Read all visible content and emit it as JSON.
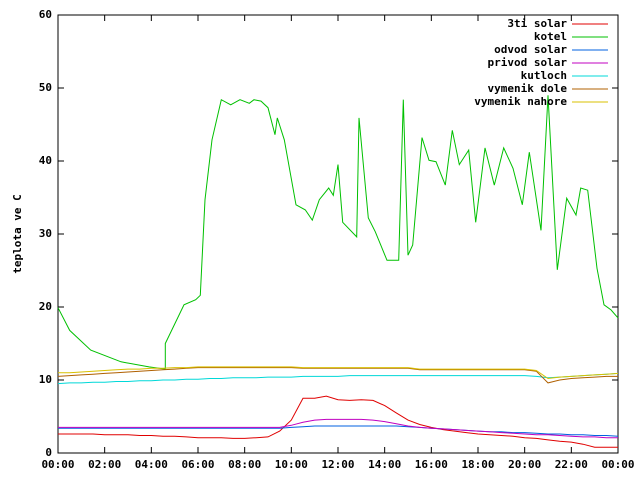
{
  "chart_data": {
    "type": "line",
    "y_label": "teplota ve C",
    "xlim": [
      0,
      24
    ],
    "ylim": [
      0,
      60
    ],
    "xticks": [
      {
        "value": 0,
        "label": "00:00"
      },
      {
        "value": 2,
        "label": "02:00"
      },
      {
        "value": 4,
        "label": "04:00"
      },
      {
        "value": 6,
        "label": "06:00"
      },
      {
        "value": 8,
        "label": "08:00"
      },
      {
        "value": 10,
        "label": "10:00"
      },
      {
        "value": 12,
        "label": "12:00"
      },
      {
        "value": 14,
        "label": "14:00"
      },
      {
        "value": 16,
        "label": "16:00"
      },
      {
        "value": 18,
        "label": "18:00"
      },
      {
        "value": 20,
        "label": "20:00"
      },
      {
        "value": 22,
        "label": "22:00"
      },
      {
        "value": 24,
        "label": "00:00"
      }
    ],
    "yticks": [
      0,
      10,
      20,
      30,
      40,
      50,
      60
    ],
    "legend": "top-right",
    "grid": false,
    "x": [
      0,
      0.5,
      1,
      1.5,
      2,
      2.5,
      3,
      3.5,
      4,
      4.5,
      5,
      5.5,
      6,
      6.5,
      7,
      7.5,
      8,
      8.5,
      9,
      9.5,
      10,
      10.5,
      11,
      11.5,
      12,
      12.5,
      13,
      13.5,
      14,
      14.5,
      15,
      15.5,
      16,
      16.5,
      17,
      17.5,
      18,
      18.5,
      19,
      19.5,
      20,
      20.5,
      21,
      21.5,
      22,
      22.5,
      23,
      23.5,
      24
    ],
    "series": [
      {
        "name": "3ti solar",
        "color": "#e00000",
        "values": [
          2.6,
          2.6,
          2.6,
          2.6,
          2.5,
          2.5,
          2.5,
          2.4,
          2.4,
          2.3,
          2.3,
          2.2,
          2.1,
          2.1,
          2.1,
          2.0,
          2.0,
          2.1,
          2.2,
          3,
          4.5,
          7.5,
          7.5,
          7.8,
          7.3,
          7.2,
          7.3,
          7.2,
          6.5,
          5.5,
          4.5,
          3.9,
          3.5,
          3.2,
          3,
          2.8,
          2.6,
          2.5,
          2.4,
          2.3,
          2.1,
          2,
          1.8,
          1.6,
          1.5,
          1.2,
          0.8,
          0.8,
          0.8
        ]
      },
      {
        "name": "kotel",
        "color": "#00c000",
        "x": [
          0,
          0.5,
          1.4,
          2.7,
          3.9,
          4.6,
          4.6,
          5.4,
          5.9,
          6.1,
          6.3,
          6.6,
          7.0,
          7.4,
          7.8,
          8.2,
          8.4,
          8.7,
          9.0,
          9.3,
          9.4,
          9.7,
          10.2,
          10.6,
          10.9,
          11.2,
          11.6,
          11.8,
          12,
          12.2,
          12.8,
          12.9,
          13.3,
          13.6,
          14.1,
          14.6,
          14.8,
          15,
          15.2,
          15.6,
          15.9,
          16.2,
          16.6,
          16.9,
          17.2,
          17.6,
          17.9,
          18.3,
          18.7,
          19.1,
          19.5,
          19.9,
          20.2,
          20.7,
          21,
          21.4,
          21.8,
          22.2,
          22.4,
          22.7,
          23.1,
          23.4,
          23.7,
          24
        ],
        "values": [
          19.9,
          16.8,
          14.1,
          12.5,
          11.8,
          11.5,
          15,
          20.3,
          21,
          21.6,
          34.7,
          42.9,
          48.4,
          47.7,
          48.4,
          47.9,
          48.4,
          48.2,
          47.3,
          43.6,
          45.9,
          42.9,
          34,
          33.3,
          31.9,
          34.7,
          36.3,
          35.3,
          39.5,
          31.6,
          29.6,
          45.9,
          32.2,
          30.3,
          26.4,
          26.4,
          48.4,
          27.1,
          28.5,
          43.2,
          40.1,
          39.9,
          36.7,
          44.2,
          39.5,
          41.5,
          31.6,
          41.8,
          36.7,
          41.8,
          39,
          34,
          41.2,
          30.5,
          49,
          25.1,
          34.9,
          32.6,
          36.3,
          36,
          25.3,
          20.3,
          19.6,
          18.5
        ]
      },
      {
        "name": "odvod solar",
        "color": "#0060e0",
        "values": [
          3.4,
          3.4,
          3.4,
          3.4,
          3.4,
          3.4,
          3.4,
          3.4,
          3.4,
          3.4,
          3.4,
          3.4,
          3.4,
          3.4,
          3.4,
          3.4,
          3.4,
          3.4,
          3.4,
          3.4,
          3.5,
          3.6,
          3.7,
          3.7,
          3.7,
          3.7,
          3.7,
          3.7,
          3.7,
          3.7,
          3.6,
          3.5,
          3.4,
          3.3,
          3.2,
          3.1,
          3.0,
          2.9,
          2.9,
          2.8,
          2.8,
          2.7,
          2.6,
          2.6,
          2.5,
          2.5,
          2.4,
          2.4,
          2.3
        ]
      },
      {
        "name": "privod solar",
        "color": "#c000c0",
        "values": [
          3.5,
          3.5,
          3.5,
          3.5,
          3.5,
          3.5,
          3.5,
          3.5,
          3.5,
          3.5,
          3.5,
          3.5,
          3.5,
          3.5,
          3.5,
          3.5,
          3.5,
          3.5,
          3.5,
          3.5,
          3.8,
          4.2,
          4.5,
          4.6,
          4.6,
          4.6,
          4.6,
          4.5,
          4.3,
          4,
          3.7,
          3.5,
          3.4,
          3.3,
          3.2,
          3.1,
          3.0,
          2.9,
          2.8,
          2.7,
          2.6,
          2.5,
          2.5,
          2.4,
          2.3,
          2.2,
          2.2,
          2.1,
          2.1
        ]
      },
      {
        "name": "kutloch",
        "color": "#00d8d8",
        "values": [
          9.5,
          9.6,
          9.6,
          9.7,
          9.7,
          9.8,
          9.8,
          9.9,
          9.9,
          10,
          10,
          10.1,
          10.1,
          10.2,
          10.2,
          10.3,
          10.3,
          10.3,
          10.4,
          10.4,
          10.4,
          10.5,
          10.5,
          10.5,
          10.5,
          10.6,
          10.6,
          10.6,
          10.6,
          10.6,
          10.6,
          10.6,
          10.6,
          10.6,
          10.6,
          10.6,
          10.6,
          10.6,
          10.6,
          10.6,
          10.6,
          10.5,
          10.3,
          10.4,
          10.5,
          10.6,
          10.7,
          10.8,
          10.9
        ]
      },
      {
        "name": "vymenik dole",
        "color": "#b06000",
        "values": [
          10.5,
          10.6,
          10.7,
          10.8,
          10.9,
          11,
          11.1,
          11.2,
          11.3,
          11.4,
          11.5,
          11.6,
          11.7,
          11.7,
          11.7,
          11.7,
          11.7,
          11.7,
          11.7,
          11.7,
          11.7,
          11.6,
          11.6,
          11.6,
          11.6,
          11.6,
          11.6,
          11.6,
          11.6,
          11.6,
          11.6,
          11.4,
          11.4,
          11.4,
          11.4,
          11.4,
          11.4,
          11.4,
          11.4,
          11.4,
          11.4,
          11.2,
          9.6,
          10,
          10.2,
          10.3,
          10.4,
          10.5,
          10.5
        ]
      },
      {
        "name": "vymenik nahore",
        "color": "#d8c000",
        "values": [
          11,
          11,
          11.1,
          11.2,
          11.3,
          11.4,
          11.5,
          11.5,
          11.6,
          11.6,
          11.7,
          11.7,
          11.8,
          11.8,
          11.8,
          11.8,
          11.8,
          11.8,
          11.8,
          11.8,
          11.8,
          11.7,
          11.7,
          11.7,
          11.7,
          11.7,
          11.7,
          11.7,
          11.7,
          11.7,
          11.7,
          11.5,
          11.5,
          11.5,
          11.5,
          11.5,
          11.5,
          11.5,
          11.5,
          11.5,
          11.5,
          11.3,
          10.2,
          10.4,
          10.5,
          10.6,
          10.7,
          10.8,
          10.9
        ]
      }
    ]
  }
}
